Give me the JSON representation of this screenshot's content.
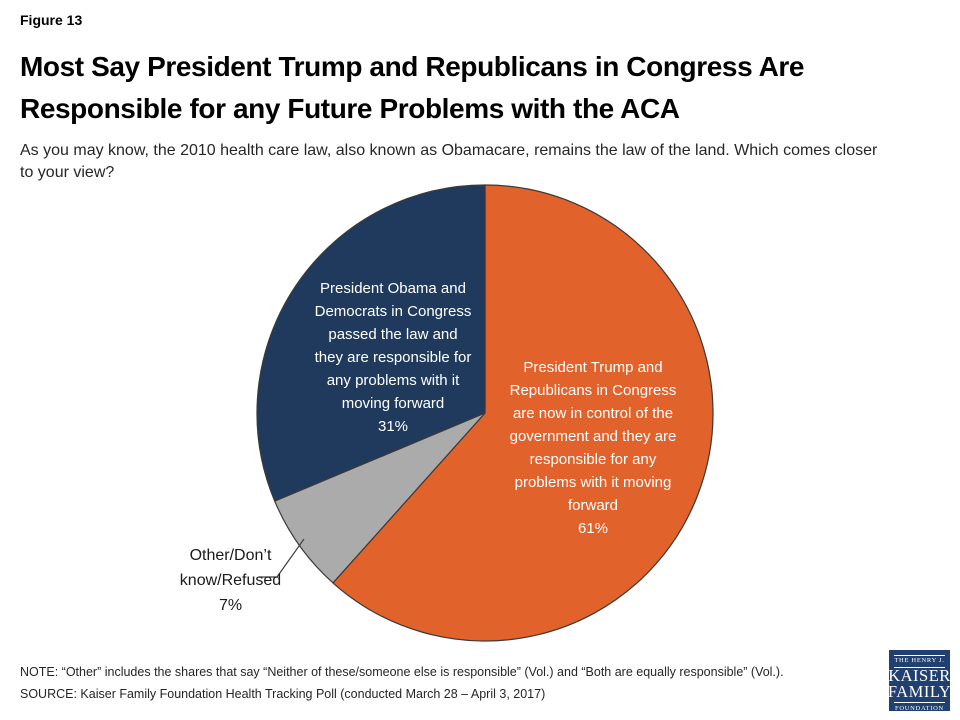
{
  "page": {
    "figure_label": "Figure 13",
    "title": "Most Say President Trump and Republicans in Congress Are\nResponsible for any Future Problems with the ACA",
    "subtitle": "As you may know, the 2010 health care law, also known as Obamacare, remains the law of the land. Which comes closer\nto your view?",
    "note": "NOTE: “Other” includes the shares that say “Neither of these/someone else is responsible” (Vol.) and “Both are equally responsible” (Vol.).",
    "source": "SOURCE: Kaiser Family Foundation Health Tracking Poll (conducted March 28 – April 3, 2017)"
  },
  "chart_data": {
    "type": "pie",
    "title": "Responsibility for any future problems with the ACA",
    "start_angle_deg": 0,
    "direction": "clockwise",
    "legend_position": "labels-on-slices",
    "slices": [
      {
        "name": "trump",
        "label": "President Trump and Republicans in Congress are now in control of the government and they are responsible for any problems with it moving forward",
        "value": 61,
        "pct_label": "61%",
        "color": "#E2622B"
      },
      {
        "name": "other",
        "label": "Other/Don’t know/Refused",
        "value": 7,
        "pct_label": "7%",
        "color": "#ABABAB"
      },
      {
        "name": "obama",
        "label": "President Obama and Democrats in Congress passed the law and they are responsible for any problems with it moving forward",
        "value": 31,
        "pct_label": "31%",
        "color": "#1F3A5C"
      }
    ]
  },
  "slice_label_text": {
    "trump": "President Trump and\nRepublicans in Congress\nare now in control of the\ngovernment and they are\nresponsible for any\nproblems with it moving\nforward\n61%",
    "obama": "President Obama and\nDemocrats in Congress\npassed the law and\nthey are responsible for\nany problems with it\nmoving forward\n31%",
    "other": "Other/Don’t\nknow/Refused\n7%"
  },
  "logo": {
    "line1": "THE HENRY J.",
    "line2": "KAISER",
    "line3": "FAMILY",
    "line4": "FOUNDATION",
    "background_color": "#21406F"
  },
  "colors": {
    "slice_stroke": "#3A3A3A",
    "leader_line": "#404040",
    "title_text": "#000000",
    "body_text": "#262626"
  }
}
